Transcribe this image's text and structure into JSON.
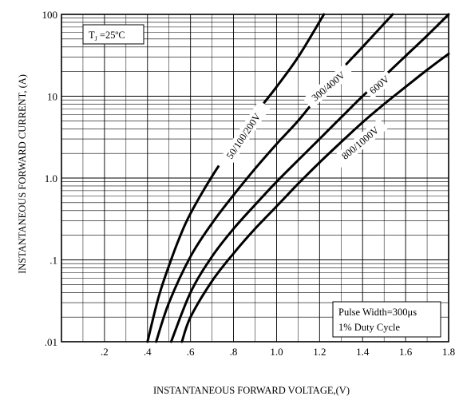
{
  "chart_data": {
    "type": "line",
    "title": "",
    "xlabel": "INSTANTANEOUS FORWARD VOLTAGE,(V)",
    "ylabel": "INSTANTANEOUS FORWARD CURRENT, (A)",
    "xlim": [
      0,
      1.8
    ],
    "ylim": [
      0.01,
      100
    ],
    "yscale": "log",
    "grid": true,
    "x_ticks": [
      ".2",
      ".4",
      ".6",
      ".8",
      "1.0",
      "1.2",
      "1.4",
      "1.6",
      "1.8"
    ],
    "x_tick_values": [
      0.2,
      0.4,
      0.6,
      0.8,
      1.0,
      1.2,
      1.4,
      1.6,
      1.8
    ],
    "y_ticks": [
      ".01",
      ".1",
      "1.0",
      "10",
      "100"
    ],
    "y_tick_values": [
      0.01,
      0.1,
      1,
      10,
      100
    ],
    "annotations": {
      "temperature": "T₉ =25ºC",
      "temp_main": "T",
      "temp_sub": "J",
      "temp_rest": " =25ºC",
      "pulse_width": "Pulse Width=300μs",
      "duty_cycle": "1% Duty Cycle"
    },
    "series": [
      {
        "name": "50/100/200V",
        "x": [
          0.4,
          0.45,
          0.5,
          0.55,
          0.6,
          0.7,
          0.8,
          0.9,
          1.0,
          1.1,
          1.22
        ],
        "y": [
          0.01,
          0.034,
          0.085,
          0.19,
          0.37,
          1.05,
          2.6,
          6.0,
          13.0,
          30.0,
          100.0
        ]
      },
      {
        "name": "300/400V",
        "x": [
          0.44,
          0.5,
          0.6,
          0.7,
          0.8,
          0.9,
          1.0,
          1.1,
          1.2,
          1.3,
          1.4,
          1.54
        ],
        "y": [
          0.01,
          0.03,
          0.11,
          0.28,
          0.62,
          1.3,
          2.6,
          5.0,
          10.5,
          21.0,
          40.0,
          100.0
        ]
      },
      {
        "name": "600V",
        "x": [
          0.51,
          0.6,
          0.7,
          0.8,
          0.9,
          1.0,
          1.1,
          1.2,
          1.3,
          1.4,
          1.5,
          1.6,
          1.7,
          1.8
        ],
        "y": [
          0.01,
          0.04,
          0.11,
          0.24,
          0.47,
          0.9,
          1.65,
          3.0,
          5.5,
          10.0,
          17.5,
          31.0,
          55.0,
          100.0
        ]
      },
      {
        "name": "800/1000V",
        "x": [
          0.56,
          0.6,
          0.7,
          0.8,
          0.9,
          1.0,
          1.1,
          1.2,
          1.3,
          1.4,
          1.5,
          1.6,
          1.7,
          1.8
        ],
        "y": [
          0.01,
          0.02,
          0.055,
          0.12,
          0.24,
          0.45,
          0.85,
          1.55,
          2.75,
          4.8,
          8.0,
          13.0,
          21.0,
          33.0
        ]
      }
    ]
  }
}
